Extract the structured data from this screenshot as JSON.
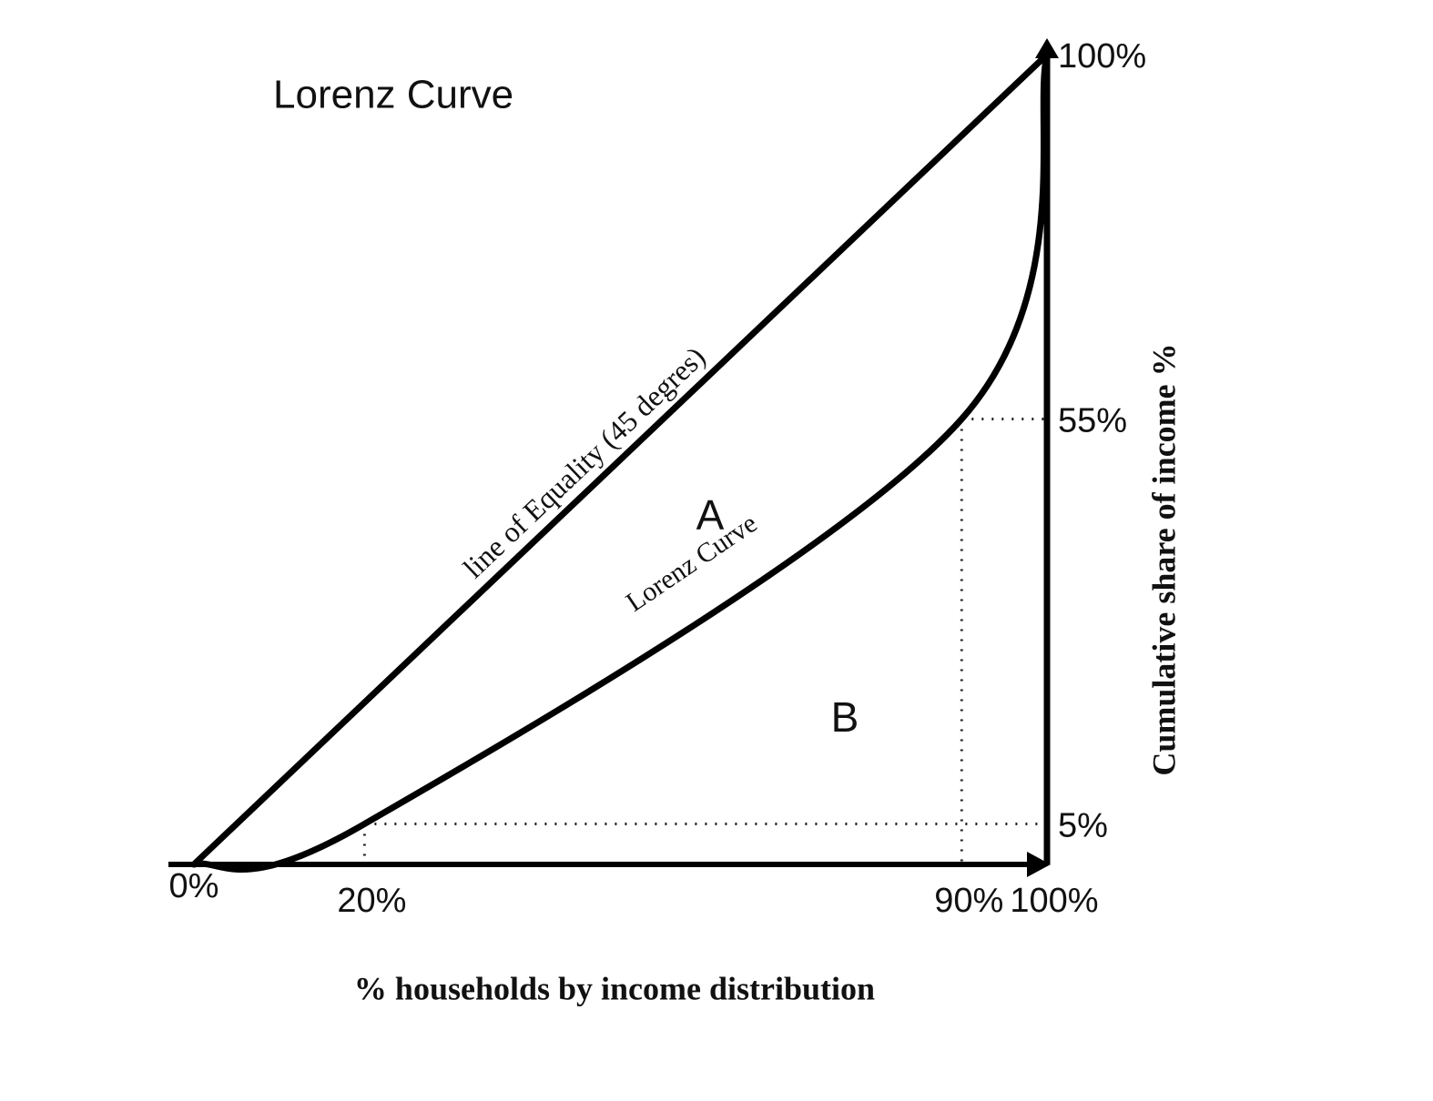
{
  "chart_data": {
    "type": "line",
    "title": "Lorenz Curve",
    "x_label": "% households by income distribution",
    "y_label": "Cumulative share of income %",
    "series": [
      {
        "name": "line of Equality (45 degres)",
        "color": "#000000",
        "x": [
          0,
          100
        ],
        "values": [
          0,
          100
        ]
      },
      {
        "name": "Lorenz Curve",
        "color": "#000000",
        "x": [
          0,
          20,
          90,
          100
        ],
        "values": [
          0,
          5,
          55,
          100
        ]
      }
    ],
    "annotations": [
      "A",
      "B"
    ],
    "xlim": [
      0,
      100
    ],
    "ylim": [
      0,
      100
    ],
    "xticks": [
      {
        "value": 0,
        "label": "0%"
      },
      {
        "value": 20,
        "label": "20%"
      },
      {
        "value": 90,
        "label": "90%"
      },
      {
        "value": 100,
        "label": "100%"
      }
    ],
    "yticks": [
      {
        "value": 5,
        "label": "5%"
      },
      {
        "value": 55,
        "label": "55%"
      },
      {
        "value": 100,
        "label": "100%"
      }
    ],
    "grid": false
  }
}
